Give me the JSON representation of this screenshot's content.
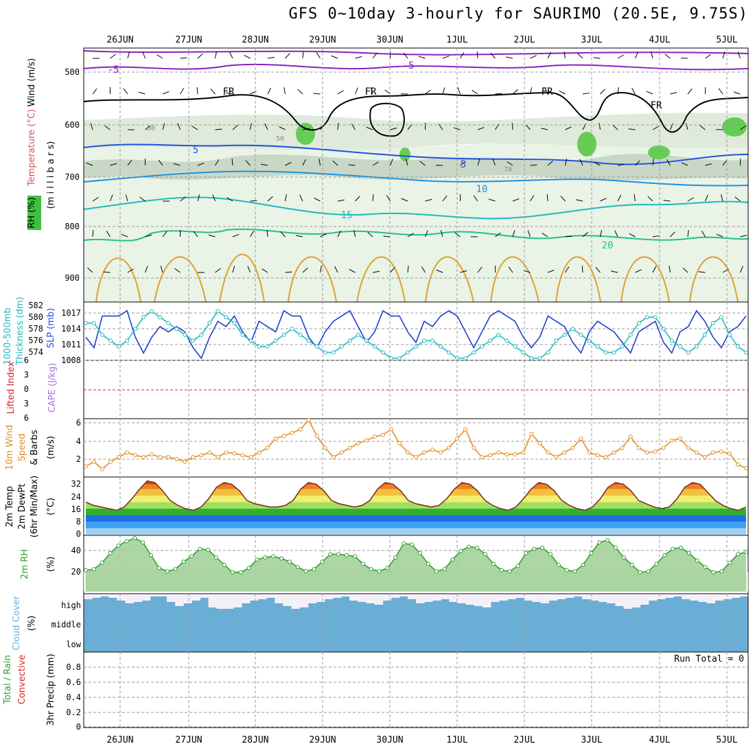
{
  "title": "GFS 0~10day 3-hourly for SAURIMO (20.5E, 9.75S)",
  "dates": [
    "26JUN",
    "27JUN",
    "28JUN",
    "29JUN",
    "30JUN",
    "1JUL",
    "2JUL",
    "3JUL",
    "4JUL",
    "5JUL"
  ],
  "panels": {
    "upper": {
      "labels": [
        "Wind (m/s)",
        "Temperature (°C)",
        "(m i l l i b a r s)",
        "RH (%)"
      ],
      "pressure_ticks": [
        "500",
        "600",
        "700",
        "800",
        "900"
      ],
      "contour_labels": [
        "-5",
        "-5",
        "FR",
        "FR",
        "FR",
        "FR",
        "5",
        "5",
        "10",
        "15",
        "20",
        "30",
        "50",
        "70"
      ]
    },
    "thickness": {
      "labels": [
        "1000-500mb",
        "Thickness (dm)",
        "SLP (mb)"
      ],
      "thickness_ticks": [
        "582",
        "580",
        "578",
        "576",
        "574"
      ],
      "slp_ticks": [
        "1017",
        "1014",
        "1011",
        "1008"
      ]
    },
    "lifted": {
      "labels": [
        "Lifted Index",
        "CAPE (J/kg)"
      ],
      "ticks": [
        "6",
        "3",
        "0",
        "3",
        "6"
      ]
    },
    "wind10": {
      "labels": [
        "10m Wind",
        "Speed",
        "& Barbs",
        "(m/s)"
      ],
      "ticks": [
        "6",
        "4",
        "2"
      ]
    },
    "temp2m": {
      "labels": [
        "2m Temp",
        "2m DewPt",
        "(6hr Min/Max)",
        "(°C)"
      ],
      "ticks": [
        "32",
        "24",
        "16",
        "8",
        "0"
      ]
    },
    "rh2m": {
      "labels": [
        "2m RH",
        "(%)"
      ],
      "ticks": [
        "40",
        "20"
      ]
    },
    "cloud": {
      "labels": [
        "Cloud Cover",
        "(%)"
      ],
      "levels": [
        "high",
        "middle",
        "low"
      ]
    },
    "precip": {
      "labels": [
        "Total / Rain",
        "Convective",
        "3hr Precip (mm)"
      ],
      "ticks": [
        "0.8",
        "0.6",
        "0.4",
        "0.2",
        "0"
      ],
      "run_total": "Run Total = 0"
    }
  },
  "colors": {
    "slp": "#1f3fd0",
    "thickness": "#20b8c0",
    "lifted_index": "#e02020",
    "cape": "#b070e0",
    "wind_speed": "#e09020",
    "rh_green": "#30a030",
    "cloud_blue": "#6aaed6",
    "cloud_white": "#f4f0f8"
  },
  "chart_data": [
    {
      "type": "line",
      "panel": "slp",
      "series": [
        {
          "values": [
            1012,
            1010,
            1016,
            1016,
            1016,
            1017,
            1012,
            1009,
            1012,
            1014,
            1013,
            1014,
            1013,
            1010,
            1008,
            1012,
            1015,
            1014,
            1016,
            1013,
            1011,
            1015,
            1014,
            1013,
            1017,
            1016,
            1016,
            1012,
            1010,
            1013,
            1015,
            1016,
            1017,
            1014,
            1011,
            1013,
            1017,
            1016,
            1016,
            1013,
            1011,
            1015,
            1014,
            1016,
            1017,
            1016,
            1013,
            1010,
            1013,
            1016,
            1017,
            1016,
            1015,
            1012,
            1010,
            1012,
            1016,
            1015,
            1014,
            1011,
            1009,
            1013,
            1015,
            1014,
            1013,
            1011,
            1009,
            1013,
            1014,
            1015,
            1011,
            1009,
            1013,
            1014,
            1017,
            1015,
            1012,
            1010,
            1013,
            1014,
            1016
          ]
        }
      ],
      "ylim": [
        1008,
        1018
      ]
    },
    {
      "type": "line",
      "panel": "thickness",
      "series": [
        {
          "values": [
            579,
            579,
            577,
            576,
            575,
            576,
            578,
            580,
            581,
            580,
            579,
            578,
            577,
            576,
            577,
            579,
            581,
            580,
            579,
            577,
            576,
            575,
            575,
            576,
            577,
            578,
            577,
            576,
            575,
            574,
            574,
            575,
            576,
            577,
            576,
            575,
            574,
            573,
            573,
            574,
            575,
            576,
            576,
            575,
            574,
            573,
            573,
            574,
            575,
            576,
            577,
            576,
            575,
            574,
            573,
            573,
            574,
            576,
            577,
            578,
            577,
            576,
            575,
            574,
            574,
            575,
            577,
            579,
            580,
            580,
            578,
            576,
            575,
            574,
            575,
            577,
            579,
            580,
            577,
            575,
            574
          ]
        }
      ],
      "ylim": [
        573,
        582
      ]
    },
    {
      "type": "line",
      "panel": "wind10",
      "series": [
        {
          "values": [
            1,
            1.5,
            0.7,
            1.5,
            2,
            2.5,
            2.2,
            2,
            2.3,
            2,
            2,
            1.8,
            1.5,
            2,
            2.2,
            2.5,
            2,
            2.5,
            2.4,
            2.2,
            2,
            2.5,
            3,
            4,
            4.3,
            4.6,
            5,
            6,
            4.3,
            3,
            2,
            2.5,
            3,
            3.5,
            3.8,
            4.2,
            4.4,
            5,
            3.5,
            2.5,
            2,
            2.5,
            2.8,
            2.5,
            3,
            4,
            5,
            3,
            2,
            2.2,
            2.5,
            2.3,
            2.3,
            2.5,
            4.5,
            3.5,
            2.5,
            2,
            2.5,
            3,
            4,
            2.5,
            2.2,
            2,
            2.5,
            3,
            4.2,
            3,
            2.5,
            2.6,
            3,
            3.8,
            4,
            3,
            2.5,
            2,
            2.5,
            2.6,
            2.4,
            1.2,
            0.8
          ]
        }
      ],
      "ylim": [
        0,
        6
      ]
    },
    {
      "type": "area",
      "panel": "temp2m",
      "series": [
        {
          "values": [
            20,
            18,
            17,
            16,
            15,
            17,
            22,
            28,
            33,
            32,
            27,
            21,
            18,
            16,
            15,
            17,
            22,
            29,
            32,
            31,
            27,
            21,
            19,
            18,
            17,
            17,
            18,
            21,
            28,
            32,
            31,
            27,
            21,
            19,
            18,
            17,
            18,
            21,
            28,
            32,
            31,
            27,
            21,
            19,
            18,
            17,
            18,
            22,
            28,
            32,
            31,
            27,
            21,
            18,
            16,
            15,
            17,
            22,
            28,
            32,
            31,
            27,
            21,
            18,
            16,
            15,
            17,
            22,
            29,
            32,
            31,
            27,
            21,
            19,
            17,
            16,
            17,
            22,
            29,
            32,
            31,
            26,
            21,
            18,
            16,
            15,
            17
          ]
        }
      ],
      "ylim": [
        0,
        35
      ]
    },
    {
      "type": "area",
      "panel": "rh2m",
      "series": [
        {
          "values": [
            20,
            21,
            27,
            36,
            43,
            47,
            50,
            46,
            34,
            22,
            19,
            21,
            28,
            33,
            40,
            39,
            32,
            25,
            18,
            18,
            22,
            30,
            32,
            33,
            31,
            28,
            23,
            19,
            21,
            28,
            35,
            35,
            34,
            33,
            26,
            21,
            19,
            22,
            32,
            45,
            44,
            36,
            26,
            19,
            21,
            30,
            38,
            42,
            41,
            35,
            26,
            20,
            19,
            24,
            36,
            40,
            41,
            35,
            25,
            20,
            19,
            25,
            36,
            46,
            48,
            41,
            32,
            25,
            18,
            19,
            26,
            34,
            40,
            41,
            36,
            29,
            23,
            18,
            19,
            27,
            35,
            37
          ]
        }
      ],
      "ylim": [
        0,
        50
      ]
    },
    {
      "type": "bar",
      "panel": "precip",
      "series": [
        {
          "values": []
        }
      ],
      "ylim": [
        0,
        1
      ]
    }
  ]
}
